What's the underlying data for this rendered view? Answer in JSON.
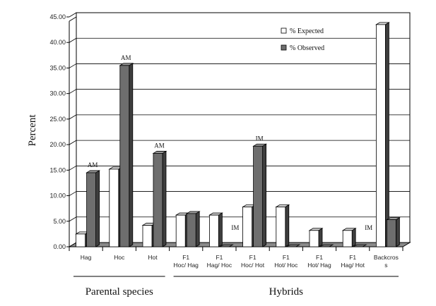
{
  "chart_data": {
    "type": "bar",
    "ylabel": "Percent",
    "ylim": [
      0,
      45
    ],
    "ytick_step": 5,
    "ytick_labels": [
      "0.00",
      "5.00",
      "10.00",
      "15.00",
      "20.00",
      "25.00",
      "30.00",
      "35.00",
      "40.00",
      "45.00"
    ],
    "categories": [
      [
        "Hag"
      ],
      [
        "Hoc"
      ],
      [
        "Hot"
      ],
      [
        "F1",
        "Hoc/ Hag"
      ],
      [
        "F1",
        "Hag/ Hoc"
      ],
      [
        "F1",
        "Hoc/ Hot"
      ],
      [
        "F1",
        "Hot/ Hoc"
      ],
      [
        "F1",
        "Hot/ Hag"
      ],
      [
        "F1",
        "Hag/ Hot"
      ],
      [
        "Backcros",
        "s"
      ]
    ],
    "series": [
      {
        "name": "% Expected",
        "color": "#ffffff",
        "values": [
          2.5,
          15.2,
          4.2,
          6.2,
          6.2,
          7.8,
          7.8,
          3.2,
          3.2,
          43.5
        ]
      },
      {
        "name": "% Observed",
        "color": "#6e6e6e",
        "values": [
          14.5,
          35.5,
          18.3,
          6.5,
          0,
          19.7,
          0,
          0,
          0,
          5.3
        ]
      }
    ],
    "annotations": [
      {
        "text": "AM",
        "category": 0,
        "series": 1
      },
      {
        "text": "AM",
        "category": 1,
        "series": 1
      },
      {
        "text": "AM",
        "category": 2,
        "series": 1
      },
      {
        "text": "IM",
        "category": 4,
        "series": 1
      },
      {
        "text": "IM",
        "category": 5,
        "series": 1
      },
      {
        "text": "IM",
        "category": 8,
        "series": 1
      }
    ],
    "groups": [
      {
        "label": "Parental species",
        "from": 0,
        "to": 2
      },
      {
        "label": "Hybrids",
        "from": 3,
        "to": 9
      }
    ],
    "legend_position": "top-right",
    "grid": true
  }
}
